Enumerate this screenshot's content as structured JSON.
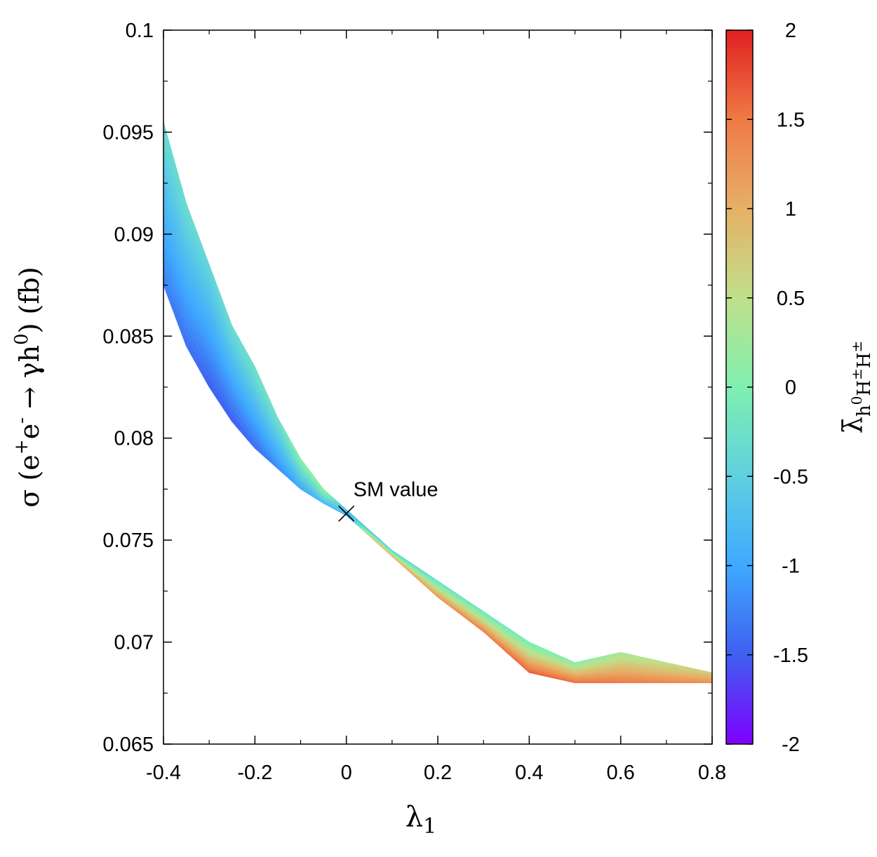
{
  "chart_data": {
    "type": "scatter",
    "title": "",
    "xlabel": "λ1",
    "ylabel": "σ (e+e- → γh0) (fb)",
    "colorbar_label": "λ̄h0H±H±",
    "xlim": [
      -0.4,
      0.8
    ],
    "ylim": [
      0.065,
      0.1
    ],
    "clim": [
      -2,
      2
    ],
    "x_ticks": [
      "-0.4",
      "-0.2",
      "0",
      "0.2",
      "0.4",
      "0.6",
      "0.8"
    ],
    "x_tick_values": [
      -0.4,
      -0.2,
      0,
      0.2,
      0.4,
      0.6,
      0.8
    ],
    "y_ticks": [
      "0.065",
      "0.07",
      "0.075",
      "0.08",
      "0.085",
      "0.09",
      "0.095",
      "0.1"
    ],
    "y_tick_values": [
      0.065,
      0.07,
      0.075,
      0.08,
      0.085,
      0.09,
      0.095,
      0.1
    ],
    "colorbar_ticks": [
      "-2",
      "-1.5",
      "-1",
      "-0.5",
      "0",
      "0.5",
      "1",
      "1.5",
      "2"
    ],
    "colorbar_tick_values": [
      -2,
      -1.5,
      -1,
      -0.5,
      0,
      0.5,
      1,
      1.5,
      2
    ],
    "colormap": [
      "#7f00ff",
      "#3f5ff0",
      "#3fa9ff",
      "#5fd0e0",
      "#7fefb0",
      "#c0e08a",
      "#e6b066",
      "#ef7a46",
      "#e02020"
    ],
    "grid": false,
    "band": {
      "description": "dense scatter band of parameter points colored by coupling",
      "x": [
        -0.4,
        -0.35,
        -0.3,
        -0.25,
        -0.2,
        -0.15,
        -0.1,
        -0.05,
        0,
        0.05,
        0.1,
        0.2,
        0.3,
        0.4,
        0.5,
        0.6,
        0.7,
        0.8
      ],
      "upper_y": [
        0.0955,
        0.0915,
        0.0885,
        0.0855,
        0.0835,
        0.081,
        0.079,
        0.0775,
        0.0765,
        0.0755,
        0.0745,
        0.073,
        0.0715,
        0.07,
        0.069,
        0.0695,
        0.069,
        0.0685
      ],
      "lower_y": [
        0.0875,
        0.0845,
        0.0825,
        0.0808,
        0.0795,
        0.0785,
        0.0775,
        0.0768,
        0.0762,
        0.0752,
        0.0742,
        0.0722,
        0.0705,
        0.0685,
        0.068,
        0.068,
        0.068,
        0.068
      ],
      "upper_color_value": [
        -0.3,
        -0.3,
        -0.4,
        -0.3,
        -0.2,
        -0.2,
        0.1,
        0.2,
        -0.8,
        -0.6,
        -0.5,
        -0.3,
        -0.2,
        -0.1,
        0.1,
        0.3,
        0.5,
        0.7
      ],
      "lower_color_value": [
        -1.3,
        -1.4,
        -1.5,
        -1.5,
        -1.4,
        -1.2,
        -1.0,
        -0.8,
        -0.8,
        0.9,
        1.1,
        1.3,
        1.5,
        1.7,
        1.6,
        1.5,
        1.4,
        1.3
      ]
    },
    "annotations": [
      {
        "label": "SM value",
        "x": 0.0,
        "y": 0.0763,
        "marker": "x"
      }
    ]
  }
}
